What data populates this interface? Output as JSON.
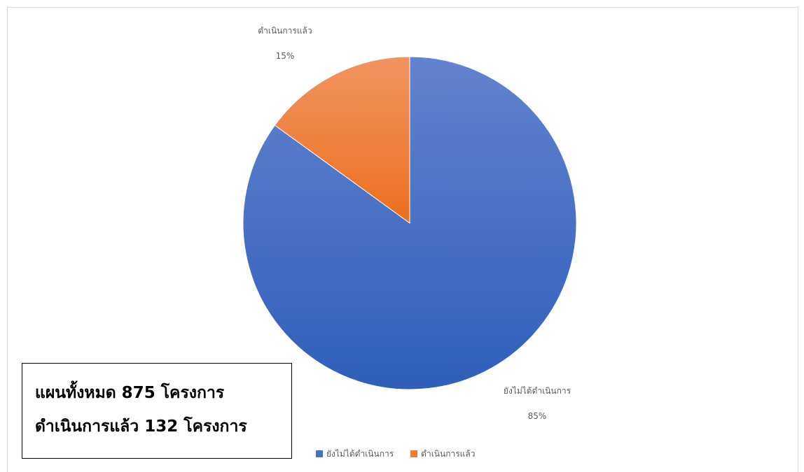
{
  "chart_data": {
    "type": "pie",
    "categories": [
      "ยังไม่ได้ดำเนินการ",
      "ดำเนินการแล้ว"
    ],
    "values": [
      85,
      15
    ],
    "data_labels": [
      {
        "name": "ยังไม่ได้ดำเนินการ",
        "value": "85%"
      },
      {
        "name": "ดำเนินการแล้ว",
        "value": "15%"
      }
    ],
    "colors": [
      "#4472c4",
      "#ed7d31"
    ],
    "legend": "bottom",
    "title": ""
  },
  "legend": {
    "items": [
      {
        "label": "ยังไม่ได้ดำเนินการ",
        "color": "#4472c4"
      },
      {
        "label": "ดำเนินการแล้ว",
        "color": "#ed7d31"
      }
    ]
  },
  "summary_box": {
    "line1": "แผนทั้งหมด 875 โครงการ",
    "line2": "ดำเนินการแล้ว 132 โครงการ"
  }
}
